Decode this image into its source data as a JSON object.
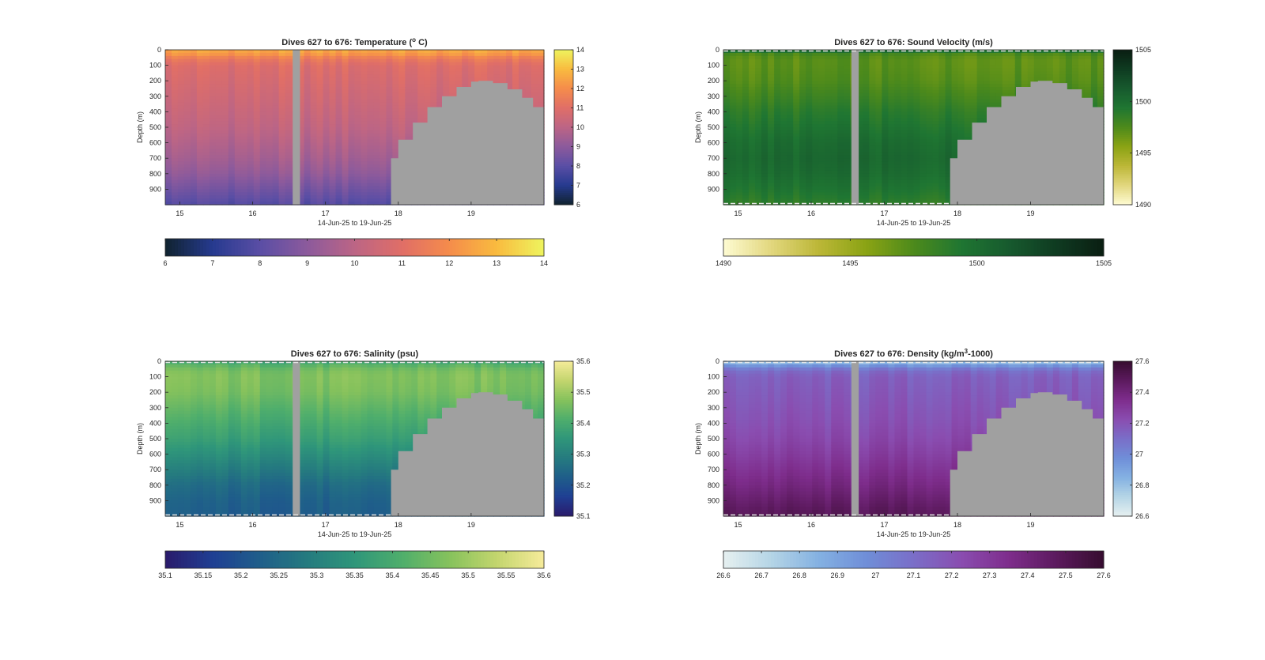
{
  "figure": {
    "background": "#ffffff",
    "mask_color": "#a0a0a0"
  },
  "chart_data": [
    {
      "type": "heatmap",
      "key": "temp",
      "title": "Dives 627 to 676: Temperature (",
      "title_sup": "o",
      "title_tail": " C)",
      "xlabel": "14-Jun-25 to 19-Jun-25",
      "ylabel": "Depth (m)",
      "x_ticks": [
        "15",
        "16",
        "17",
        "18",
        "19"
      ],
      "x_tick_values": [
        15,
        16,
        17,
        18,
        19
      ],
      "xlim": [
        14.8,
        20.0
      ],
      "y_ticks": [
        "0",
        "100",
        "200",
        "300",
        "400",
        "500",
        "600",
        "700",
        "800",
        "900"
      ],
      "y_tick_values": [
        0,
        100,
        200,
        300,
        400,
        500,
        600,
        700,
        800,
        900
      ],
      "ylim": [
        0,
        1000
      ],
      "clim": [
        6,
        14
      ],
      "colorbar_ticks": [
        "6",
        "7",
        "8",
        "9",
        "10",
        "11",
        "12",
        "13",
        "14"
      ],
      "colorbar_tick_values": [
        6,
        7,
        8,
        9,
        10,
        11,
        12,
        13,
        14
      ],
      "colormap": [
        "#10232f",
        "#263a8f",
        "#5a4ea5",
        "#8c5a9c",
        "#bc6585",
        "#e06e67",
        "#f58c4b",
        "#f9bb3f",
        "#eef45e"
      ],
      "depth_profile": {
        "depth": [
          0,
          30,
          60,
          100,
          200,
          300,
          400,
          500,
          600,
          700,
          800,
          900,
          1000
        ],
        "value": [
          12.6,
          12.2,
          11.4,
          10.9,
          10.7,
          10.5,
          10.3,
          10.1,
          9.8,
          9.5,
          9.1,
          8.5,
          7.9
        ]
      },
      "gap_x": [
        16.55,
        16.65
      ],
      "bathymetry": {
        "x": [
          17.9,
          18.0,
          18.2,
          18.4,
          18.6,
          18.8,
          19.0,
          19.1,
          19.3,
          19.5,
          19.7,
          19.85,
          20.0
        ],
        "depth": [
          700,
          580,
          470,
          370,
          300,
          240,
          205,
          200,
          215,
          255,
          310,
          370,
          400
        ]
      },
      "dashed_borders": false
    },
    {
      "type": "heatmap",
      "key": "sv",
      "title": "Dives 627 to 676: Sound Velocity (m/s)",
      "title_sup": "",
      "title_tail": "",
      "xlabel": "14-Jun-25 to 19-Jun-25",
      "ylabel": "Depth (m)",
      "x_ticks": [
        "15",
        "16",
        "17",
        "18",
        "19"
      ],
      "x_tick_values": [
        15,
        16,
        17,
        18,
        19
      ],
      "xlim": [
        14.8,
        20.0
      ],
      "y_ticks": [
        "0",
        "100",
        "200",
        "300",
        "400",
        "500",
        "600",
        "700",
        "800",
        "900"
      ],
      "y_tick_values": [
        0,
        100,
        200,
        300,
        400,
        500,
        600,
        700,
        800,
        900
      ],
      "ylim": [
        0,
        1000
      ],
      "clim": [
        1490,
        1505
      ],
      "colorbar_ticks": [
        "1490",
        "1495",
        "1500",
        "1505"
      ],
      "colorbar_tick_values": [
        1490,
        1495,
        1500,
        1505
      ],
      "colormap": [
        "#fefbd2",
        "#e2d77e",
        "#bcb737",
        "#8aa314",
        "#4d8a1b",
        "#1f7632",
        "#175a2e",
        "#0f3b21",
        "#0a1e12"
      ],
      "depth_profile": {
        "depth": [
          0,
          30,
          60,
          100,
          200,
          300,
          400,
          500,
          600,
          700,
          800,
          900,
          1000
        ],
        "value": [
          1500.6,
          1497.6,
          1497.0,
          1497.0,
          1497.3,
          1498.0,
          1498.8,
          1499.4,
          1500.0,
          1500.3,
          1500.0,
          1499.4,
          1498.6
        ]
      },
      "gap_x": [
        16.55,
        16.65
      ],
      "bathymetry": {
        "x": [
          17.9,
          18.0,
          18.2,
          18.4,
          18.6,
          18.8,
          19.0,
          19.1,
          19.3,
          19.5,
          19.7,
          19.85,
          20.0
        ],
        "depth": [
          700,
          580,
          470,
          370,
          300,
          240,
          205,
          200,
          215,
          255,
          310,
          370,
          400
        ]
      },
      "dashed_borders": true
    },
    {
      "type": "heatmap",
      "key": "sal",
      "title": "Dives 627 to 676: Salinity (psu)",
      "title_sup": "",
      "title_tail": "",
      "xlabel": "14-Jun-25 to 19-Jun-25",
      "ylabel": "Depth (m)",
      "x_ticks": [
        "15",
        "16",
        "17",
        "18",
        "19"
      ],
      "x_tick_values": [
        15,
        16,
        17,
        18,
        19
      ],
      "xlim": [
        14.8,
        20.0
      ],
      "y_ticks": [
        "0",
        "100",
        "200",
        "300",
        "400",
        "500",
        "600",
        "700",
        "800",
        "900"
      ],
      "y_tick_values": [
        0,
        100,
        200,
        300,
        400,
        500,
        600,
        700,
        800,
        900
      ],
      "ylim": [
        0,
        1000
      ],
      "clim": [
        35.1,
        35.6
      ],
      "colorbar_ticks": [
        "35.1",
        "35.2",
        "35.3",
        "35.4",
        "35.5",
        "35.6"
      ],
      "colorbar_tick_values": [
        35.1,
        35.2,
        35.3,
        35.4,
        35.5,
        35.6
      ],
      "hcolorbar_ticks": [
        "35.1",
        "35.15",
        "35.2",
        "35.25",
        "35.3",
        "35.35",
        "35.4",
        "35.45",
        "35.5",
        "35.55",
        "35.6"
      ],
      "hcolorbar_tick_values": [
        35.1,
        35.15,
        35.2,
        35.25,
        35.3,
        35.35,
        35.4,
        35.45,
        35.5,
        35.55,
        35.6
      ],
      "colormap": [
        "#2a1a6b",
        "#1f3f93",
        "#1f5e8a",
        "#257b7f",
        "#2f967a",
        "#4fae6c",
        "#86c25c",
        "#c3d56e",
        "#f6eb9a"
      ],
      "depth_profile": {
        "depth": [
          0,
          30,
          60,
          100,
          200,
          300,
          400,
          500,
          600,
          700,
          800,
          900,
          1000
        ],
        "value": [
          35.38,
          35.43,
          35.46,
          35.47,
          35.46,
          35.43,
          35.4,
          35.37,
          35.33,
          35.29,
          35.25,
          35.23,
          35.22
        ]
      },
      "gap_x": [
        16.55,
        16.65
      ],
      "bathymetry": {
        "x": [
          17.9,
          18.0,
          18.2,
          18.4,
          18.6,
          18.8,
          19.0,
          19.1,
          19.3,
          19.5,
          19.7,
          19.85,
          20.0
        ],
        "depth": [
          700,
          580,
          470,
          370,
          300,
          240,
          205,
          200,
          215,
          255,
          310,
          370,
          400
        ]
      },
      "dashed_borders": true
    },
    {
      "type": "heatmap",
      "key": "dens",
      "title": "Dives 627 to 676: Density (kg/m",
      "title_sup": "3",
      "title_tail": "-1000)",
      "xlabel": "14-Jun-25 to 19-Jun-25",
      "ylabel": "Depth (m)",
      "x_ticks": [
        "15",
        "16",
        "17",
        "18",
        "19"
      ],
      "x_tick_values": [
        15,
        16,
        17,
        18,
        19
      ],
      "xlim": [
        14.8,
        20.0
      ],
      "y_ticks": [
        "0",
        "100",
        "200",
        "300",
        "400",
        "500",
        "600",
        "700",
        "800",
        "900"
      ],
      "y_tick_values": [
        0,
        100,
        200,
        300,
        400,
        500,
        600,
        700,
        800,
        900
      ],
      "ylim": [
        0,
        1000
      ],
      "clim": [
        26.6,
        27.6
      ],
      "colorbar_ticks": [
        "26.6",
        "26.8",
        "27",
        "27.2",
        "27.4",
        "27.6"
      ],
      "colorbar_tick_values": [
        26.6,
        26.8,
        27.0,
        27.2,
        27.4,
        27.6
      ],
      "hcolorbar_ticks": [
        "26.6",
        "26.7",
        "26.8",
        "26.9",
        "27",
        "27.1",
        "27.2",
        "27.3",
        "27.4",
        "27.5",
        "27.6"
      ],
      "hcolorbar_tick_values": [
        26.6,
        26.7,
        26.8,
        26.9,
        27.0,
        27.1,
        27.2,
        27.3,
        27.4,
        27.5,
        27.6
      ],
      "colormap": [
        "#e6f0f0",
        "#b5d5e6",
        "#84b1e2",
        "#6f8ed8",
        "#7a6ec8",
        "#8a4db0",
        "#7e2d8c",
        "#5c1a5e",
        "#360d2f"
      ],
      "depth_profile": {
        "depth": [
          0,
          30,
          60,
          100,
          200,
          300,
          400,
          500,
          600,
          700,
          800,
          900,
          1000
        ],
        "value": [
          26.75,
          26.95,
          27.1,
          27.15,
          27.17,
          27.19,
          27.21,
          27.24,
          27.28,
          27.33,
          27.38,
          27.44,
          27.5
        ]
      },
      "gap_x": [
        16.55,
        16.65
      ],
      "bathymetry": {
        "x": [
          17.9,
          18.0,
          18.2,
          18.4,
          18.6,
          18.8,
          19.0,
          19.1,
          19.3,
          19.5,
          19.7,
          19.85,
          20.0
        ],
        "depth": [
          700,
          580,
          470,
          370,
          300,
          240,
          205,
          200,
          215,
          255,
          310,
          370,
          400
        ]
      },
      "dashed_borders": true
    }
  ]
}
